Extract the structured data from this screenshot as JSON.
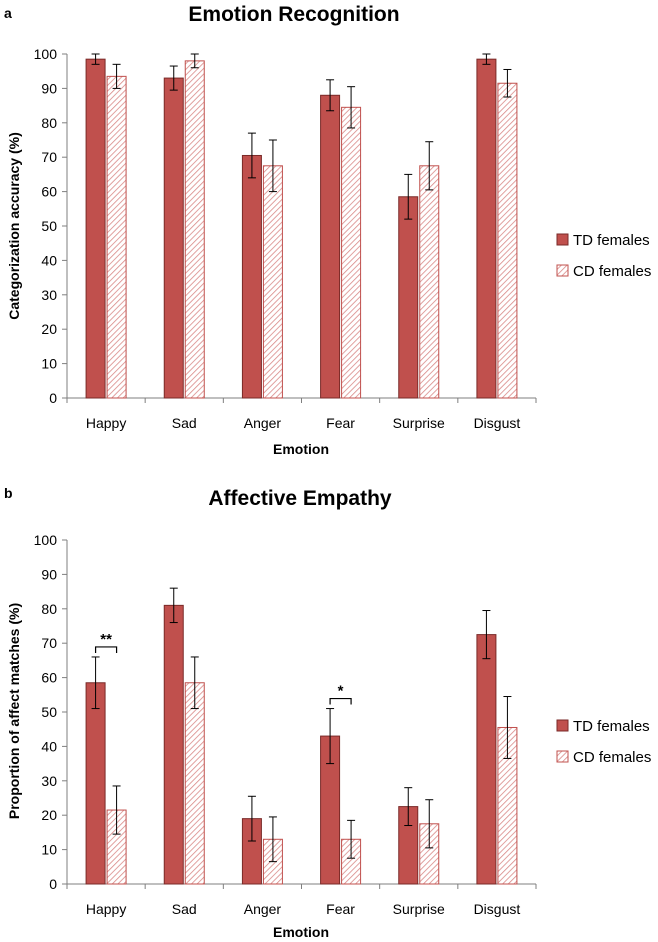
{
  "chart_data": [
    {
      "panel_label": "a",
      "type": "bar",
      "title": "Emotion Recognition",
      "xlabel": "Emotion",
      "ylabel": "Categorization accuracy (%)",
      "ylim": [
        0,
        100
      ],
      "yticks": [
        "0",
        "10",
        "20",
        "30",
        "40",
        "50",
        "60",
        "70",
        "80",
        "90",
        "100"
      ],
      "grid": false,
      "legend_position": "right",
      "categories": [
        "Happy",
        "Sad",
        "Anger",
        "Fear",
        "Surprise",
        "Disgust"
      ],
      "series": [
        {
          "name": "TD females",
          "color": "#c0504d",
          "pattern": "solid",
          "values": [
            98.5,
            93,
            70.5,
            88,
            58.5,
            98.5
          ],
          "errors": [
            1.5,
            3.5,
            6.5,
            4.5,
            6.5,
            1.5
          ]
        },
        {
          "name": "CD females",
          "color": "#c0504d",
          "pattern": "hatched",
          "values": [
            93.5,
            98,
            67.5,
            84.5,
            67.5,
            91.5
          ],
          "errors": [
            3.5,
            2,
            7.5,
            6,
            7,
            4
          ]
        }
      ],
      "annotations": []
    },
    {
      "panel_label": "b",
      "type": "bar",
      "title": "Affective Empathy",
      "xlabel": "Emotion",
      "ylabel": "Proportion of affect matches (%)",
      "ylim": [
        0,
        100
      ],
      "yticks": [
        "0",
        "10",
        "20",
        "30",
        "40",
        "50",
        "60",
        "70",
        "80",
        "90",
        "100"
      ],
      "grid": false,
      "legend_position": "right",
      "categories": [
        "Happy",
        "Sad",
        "Anger",
        "Fear",
        "Surprise",
        "Disgust"
      ],
      "series": [
        {
          "name": "TD females",
          "color": "#c0504d",
          "pattern": "solid",
          "values": [
            58.5,
            81,
            19,
            43,
            22.5,
            72.5
          ],
          "errors": [
            7.5,
            5,
            6.5,
            8,
            5.5,
            7
          ]
        },
        {
          "name": "CD females",
          "color": "#c0504d",
          "pattern": "hatched",
          "values": [
            21.5,
            58.5,
            13,
            13,
            17.5,
            45.5
          ],
          "errors": [
            7,
            7.5,
            6.5,
            5.5,
            7,
            9
          ]
        }
      ],
      "annotations": [
        {
          "category": "Happy",
          "text": "**"
        },
        {
          "category": "Fear",
          "text": "*"
        }
      ]
    }
  ]
}
